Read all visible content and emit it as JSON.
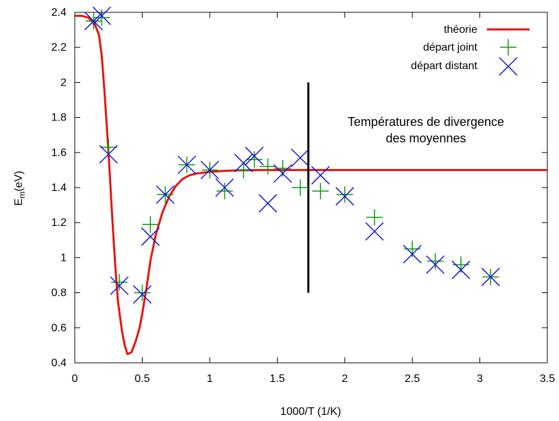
{
  "chart_data": {
    "type": "line",
    "xlabel": "1000/T (1/K)",
    "ylabel": "E",
    "ylabel_sub": "m",
    "ylabel_suffix": "(eV)",
    "xlim": [
      0,
      3.5
    ],
    "ylim": [
      0.4,
      2.4
    ],
    "xticks": [
      "0",
      "0.5",
      "1",
      "1.5",
      "2",
      "2.5",
      "3",
      "3.5"
    ],
    "yticks": [
      "0.4",
      "0.6",
      "0.8",
      "1",
      "1.2",
      "1.4",
      "1.6",
      "1.8",
      "2",
      "2.2",
      "2.4"
    ],
    "grid": false,
    "legend_position": "top-right",
    "series": [
      {
        "name": "théorie",
        "kind": "line",
        "color": "#e8120e",
        "x": [
          0.0,
          0.05,
          0.1,
          0.15,
          0.18,
          0.2,
          0.22,
          0.25,
          0.28,
          0.3,
          0.32,
          0.35,
          0.37,
          0.39,
          0.42,
          0.45,
          0.48,
          0.5,
          0.53,
          0.56,
          0.6,
          0.65,
          0.7,
          0.75,
          0.8,
          0.85,
          0.9,
          1.0,
          1.1,
          1.2,
          1.4,
          1.75,
          2.0,
          2.5,
          3.0,
          3.5
        ],
        "y": [
          2.38,
          2.38,
          2.37,
          2.33,
          2.27,
          2.15,
          1.95,
          1.6,
          1.2,
          0.95,
          0.75,
          0.58,
          0.5,
          0.45,
          0.46,
          0.52,
          0.6,
          0.68,
          0.82,
          0.98,
          1.13,
          1.26,
          1.35,
          1.41,
          1.45,
          1.47,
          1.48,
          1.49,
          1.495,
          1.498,
          1.5,
          1.5,
          1.5,
          1.5,
          1.5,
          1.5
        ]
      },
      {
        "name": "départ joint",
        "kind": "plus",
        "color": "#0a9a0a",
        "x": [
          0.14,
          0.2,
          0.25,
          0.33,
          0.5,
          0.56,
          0.67,
          0.83,
          1.0,
          1.11,
          1.25,
          1.33,
          1.43,
          1.54,
          1.67,
          1.82,
          2.0,
          2.22,
          2.5,
          2.67,
          2.86,
          3.08
        ],
        "y": [
          2.35,
          2.37,
          1.63,
          0.86,
          0.8,
          1.19,
          1.36,
          1.53,
          1.5,
          1.38,
          1.5,
          1.56,
          1.52,
          1.51,
          1.4,
          1.38,
          1.36,
          1.23,
          1.05,
          0.98,
          0.96,
          0.89
        ]
      },
      {
        "name": "départ distant",
        "kind": "cross",
        "color": "#1212d8",
        "x": [
          0.14,
          0.2,
          0.25,
          0.33,
          0.5,
          0.56,
          0.67,
          0.83,
          1.0,
          1.11,
          1.25,
          1.33,
          1.43,
          1.54,
          1.67,
          1.82,
          2.0,
          2.22,
          2.5,
          2.67,
          2.86,
          3.08
        ],
        "y": [
          2.35,
          2.38,
          1.59,
          0.84,
          0.79,
          1.12,
          1.36,
          1.53,
          1.5,
          1.4,
          1.54,
          1.58,
          1.31,
          1.48,
          1.57,
          1.47,
          1.35,
          1.15,
          1.02,
          0.96,
          0.93,
          0.89
        ]
      }
    ],
    "vertical_line": {
      "x": 1.73,
      "y_from": 0.8,
      "y_to": 2.0,
      "color": "#000000"
    },
    "annotation": [
      "Températures de divergence",
      "des moyennes"
    ]
  }
}
